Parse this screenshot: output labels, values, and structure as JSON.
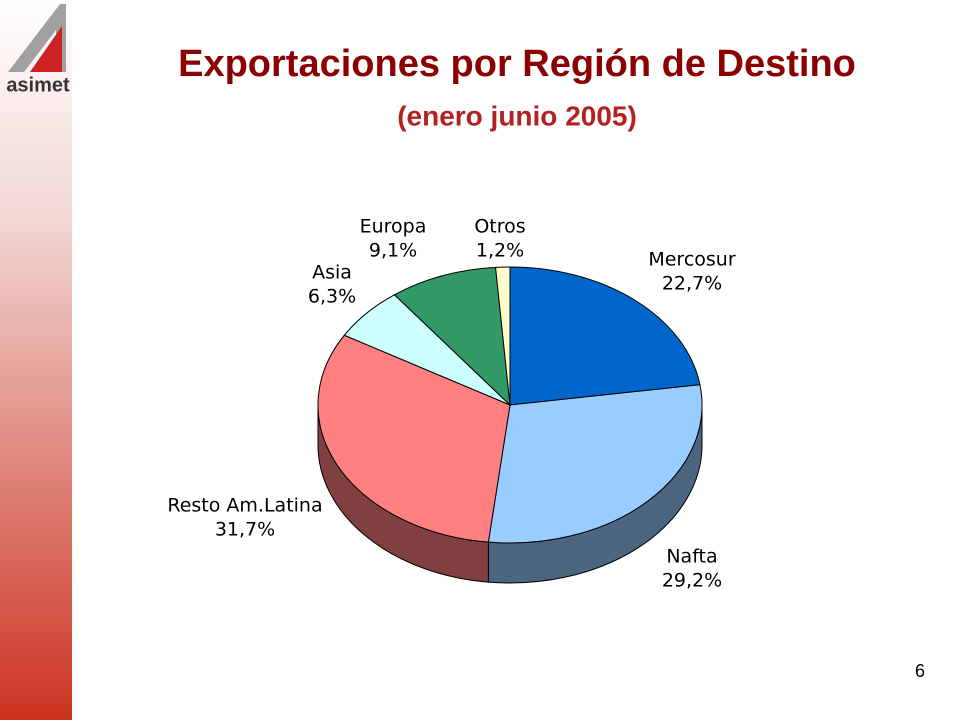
{
  "slide": {
    "logo": "asimet",
    "page_number": 6
  },
  "chart_data": {
    "type": "pie3d",
    "title": "Exportaciones por Región de Destino",
    "subtitle": "(enero junio 2005)",
    "categories": [
      "Mercosur",
      "Nafta",
      "Resto Am.Latina",
      "Asia",
      "Europa",
      "Otros"
    ],
    "values": [
      22.7,
      29.2,
      31.7,
      6.3,
      9.1,
      1.2
    ],
    "value_labels": [
      "22,7%",
      "29,2%",
      "31,7%",
      "6,3%",
      "9,1%",
      "1,2%"
    ],
    "colors": [
      "#0066cc",
      "#99ccff",
      "#ff8080",
      "#ccffff",
      "#339966",
      "#ffffcc"
    ]
  }
}
